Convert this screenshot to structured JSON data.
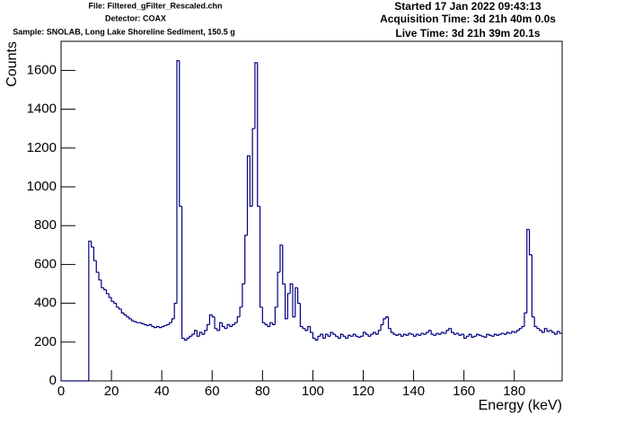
{
  "chart_data": {
    "type": "histogram",
    "header_left": [
      "File: Filtered_gFilter_Rescaled.chn",
      "Detector: COAX",
      "Sample: SNOLAB, Long Lake Shoreline Sediment, 150.5 g"
    ],
    "header_right": [
      "Started 17 Jan 2022 09:43:13",
      "Acquisition Time: 3d 21h 40m 0.0s",
      "Live Time: 3d 21h 39m 20.1s"
    ],
    "xlabel": "Energy (keV)",
    "ylabel": "Counts",
    "color": "#000080",
    "xlim": [
      0,
      199
    ],
    "ylim": [
      0,
      1750
    ],
    "xticks": [
      0,
      20,
      40,
      60,
      80,
      100,
      120,
      140,
      160,
      180
    ],
    "yticks": [
      0,
      200,
      400,
      600,
      800,
      1000,
      1200,
      1400,
      1600
    ],
    "bins": [
      0,
      1,
      2,
      3,
      4,
      5,
      6,
      7,
      8,
      9,
      10,
      11,
      12,
      13,
      14,
      15,
      16,
      17,
      18,
      19,
      20,
      21,
      22,
      23,
      24,
      25,
      26,
      27,
      28,
      29,
      30,
      31,
      32,
      33,
      34,
      35,
      36,
      37,
      38,
      39,
      40,
      41,
      42,
      43,
      44,
      45,
      46,
      47,
      48,
      49,
      50,
      51,
      52,
      53,
      54,
      55,
      56,
      57,
      58,
      59,
      60,
      61,
      62,
      63,
      64,
      65,
      66,
      67,
      68,
      69,
      70,
      71,
      72,
      73,
      74,
      75,
      76,
      77,
      78,
      79,
      80,
      81,
      82,
      83,
      84,
      85,
      86,
      87,
      88,
      89,
      90,
      91,
      92,
      93,
      94,
      95,
      96,
      97,
      98,
      99,
      100,
      101,
      102,
      103,
      104,
      105,
      106,
      107,
      108,
      109,
      110,
      111,
      112,
      113,
      114,
      115,
      116,
      117,
      118,
      119,
      120,
      121,
      122,
      123,
      124,
      125,
      126,
      127,
      128,
      129,
      130,
      131,
      132,
      133,
      134,
      135,
      136,
      137,
      138,
      139,
      140,
      141,
      142,
      143,
      144,
      145,
      146,
      147,
      148,
      149,
      150,
      151,
      152,
      153,
      154,
      155,
      156,
      157,
      158,
      159,
      160,
      161,
      162,
      163,
      164,
      165,
      166,
      167,
      168,
      169,
      170,
      171,
      172,
      173,
      174,
      175,
      176,
      177,
      178,
      179,
      180,
      181,
      182,
      183,
      184,
      185,
      186,
      187,
      188,
      189,
      190,
      191,
      192,
      193,
      194,
      195,
      196,
      197,
      198,
      199
    ],
    "counts": [
      0,
      0,
      0,
      0,
      0,
      0,
      0,
      0,
      0,
      0,
      0,
      720,
      690,
      620,
      560,
      520,
      480,
      470,
      450,
      430,
      410,
      400,
      380,
      370,
      350,
      340,
      330,
      320,
      310,
      305,
      300,
      300,
      295,
      290,
      285,
      290,
      280,
      275,
      280,
      275,
      280,
      285,
      290,
      300,
      320,
      400,
      1650,
      900,
      220,
      210,
      220,
      230,
      240,
      260,
      230,
      250,
      240,
      260,
      290,
      340,
      330,
      270,
      260,
      300,
      280,
      270,
      290,
      280,
      290,
      300,
      330,
      380,
      500,
      750,
      1160,
      900,
      1300,
      1640,
      900,
      380,
      300,
      290,
      280,
      300,
      290,
      380,
      560,
      700,
      500,
      320,
      450,
      500,
      330,
      480,
      400,
      280,
      270,
      260,
      280,
      250,
      220,
      210,
      230,
      240,
      220,
      240,
      230,
      250,
      240,
      230,
      220,
      240,
      230,
      220,
      235,
      230,
      240,
      230,
      225,
      230,
      250,
      240,
      230,
      240,
      250,
      240,
      260,
      290,
      320,
      330,
      270,
      250,
      240,
      235,
      240,
      230,
      240,
      235,
      245,
      240,
      230,
      240,
      235,
      245,
      240,
      250,
      260,
      240,
      235,
      245,
      240,
      250,
      245,
      260,
      270,
      250,
      240,
      245,
      235,
      240,
      220,
      230,
      240,
      225,
      230,
      240,
      235,
      230,
      225,
      240,
      235,
      230,
      240,
      235,
      240,
      245,
      240,
      250,
      245,
      255,
      250,
      260,
      270,
      280,
      350,
      780,
      650,
      330,
      280,
      270,
      260,
      250,
      270,
      255,
      260,
      250,
      240,
      255,
      245
    ]
  }
}
